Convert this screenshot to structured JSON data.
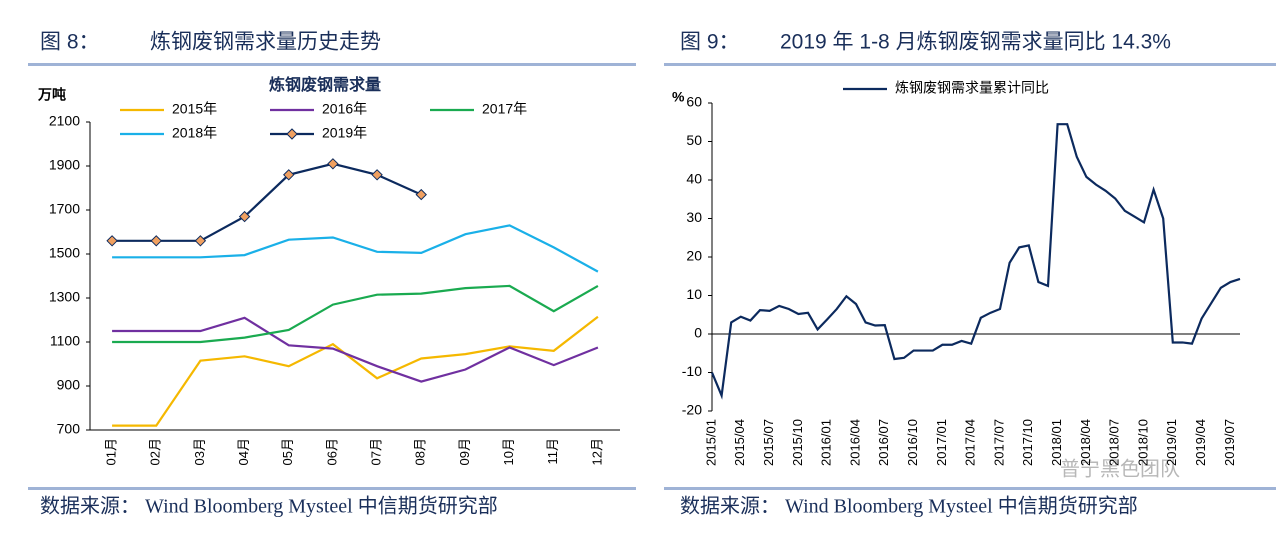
{
  "figures": [
    {
      "number": "图 8：",
      "caption": "炼钢废钢需求量历史走势",
      "source": "数据来源：  Wind Bloomberg Mysteel 中信期货研究部"
    },
    {
      "number": "图 9：",
      "caption": "2019 年 1-8 月炼钢废钢需求量同比 14.3%",
      "source": "数据来源：  Wind Bloomberg Mysteel 中信期货研究部"
    }
  ],
  "watermark": "普宁黑色团队",
  "chart_data": [
    {
      "type": "line",
      "title": "炼钢废钢需求量",
      "y_label": "万吨",
      "categories": [
        "01月",
        "02月",
        "03月",
        "04月",
        "05月",
        "06月",
        "07月",
        "08月",
        "09月",
        "10月",
        "11月",
        "12月"
      ],
      "series": [
        {
          "name": "2015年",
          "color": "#f5b800",
          "values": [
            720,
            720,
            1015,
            1035,
            990,
            1090,
            935,
            1025,
            1045,
            1080,
            1060,
            1215
          ]
        },
        {
          "name": "2016年",
          "color": "#7030a0",
          "values": [
            1150,
            1150,
            1150,
            1210,
            1085,
            1070,
            990,
            920,
            975,
            1075,
            995,
            1075
          ]
        },
        {
          "name": "2017年",
          "color": "#1aaa50",
          "values": [
            1100,
            1100,
            1100,
            1120,
            1155,
            1270,
            1315,
            1320,
            1345,
            1355,
            1240,
            1355
          ]
        },
        {
          "name": "2018年",
          "color": "#1ab0e8",
          "values": [
            1485,
            1485,
            1485,
            1495,
            1565,
            1575,
            1510,
            1505,
            1590,
            1630,
            1530,
            1420
          ]
        },
        {
          "name": "2019年",
          "color": "#0c2a5e",
          "marker": "diamond",
          "marker_color": "#f0a060",
          "values": [
            1560,
            1560,
            1560,
            1670,
            1860,
            1910,
            1860,
            1770,
            null,
            null,
            null,
            null
          ]
        }
      ],
      "ylim": [
        700,
        2100
      ],
      "yticks": [
        700,
        900,
        1100,
        1300,
        1500,
        1700,
        1900,
        2100
      ],
      "grid": false
    },
    {
      "type": "line",
      "y_label": "%",
      "categories": [
        "2015/01",
        null,
        null,
        "2015/04",
        null,
        null,
        "2015/07",
        null,
        null,
        "2015/10",
        null,
        null,
        "2016/01",
        null,
        null,
        "2016/04",
        null,
        null,
        "2016/07",
        null,
        null,
        "2016/10",
        null,
        null,
        "2017/01",
        null,
        null,
        "2017/04",
        null,
        null,
        "2017/07",
        null,
        null,
        "2017/10",
        null,
        null,
        "2018/01",
        null,
        null,
        "2018/04",
        null,
        null,
        "2018/07",
        null,
        null,
        "2018/10",
        null,
        null,
        "2019/01",
        null,
        null,
        "2019/04",
        null,
        null,
        "2019/07",
        null
      ],
      "series": [
        {
          "name": "炼钢废钢需求量累计同比",
          "color": "#0c2a5e",
          "values": [
            -10,
            -16,
            3,
            4.5,
            3.5,
            6.2,
            6,
            7.3,
            6.5,
            5.2,
            5.5,
            1.2,
            3.8,
            6.5,
            9.8,
            7.8,
            3,
            2.2,
            2.3,
            -6.5,
            -6.2,
            -4.3,
            -4.3,
            -4.3,
            -2.8,
            -2.8,
            -1.8,
            -2.5,
            4.2,
            5.5,
            6.5,
            18.5,
            22.5,
            23,
            13.5,
            12.5,
            54.5,
            54.5,
            46,
            40.8,
            38.8,
            37.2,
            35.2,
            32,
            30.5,
            29,
            37.5,
            30,
            -2.2,
            -2.2,
            -2.5,
            4,
            8,
            12,
            13.5,
            14.3
          ]
        }
      ],
      "ylim": [
        -20,
        60
      ],
      "yticks": [
        -20,
        -10,
        0,
        10,
        20,
        30,
        40,
        50,
        60
      ],
      "grid": false
    }
  ]
}
